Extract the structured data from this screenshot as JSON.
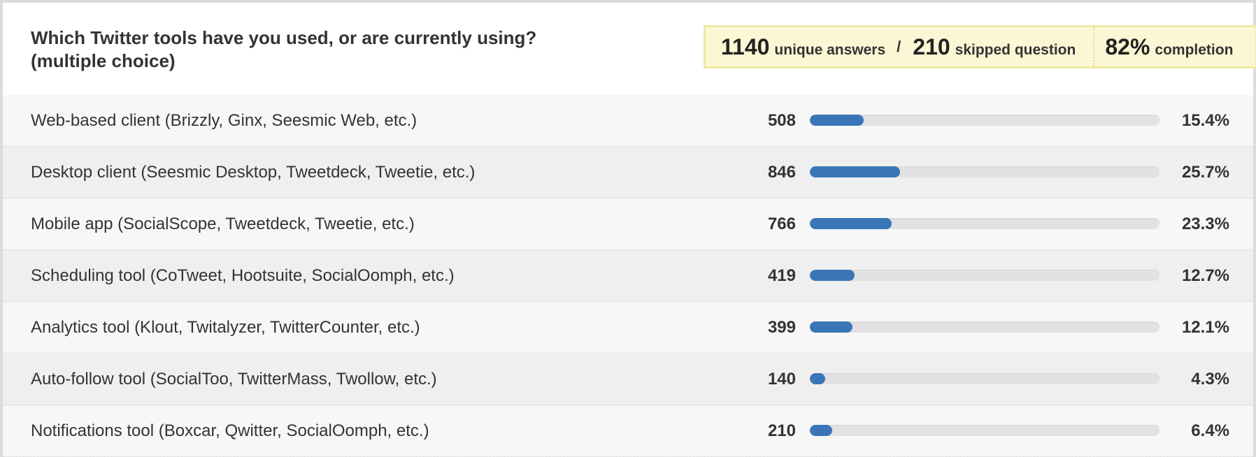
{
  "question": {
    "line1": "Which Twitter tools have you used, or are currently using?",
    "line2": "(multiple choice)"
  },
  "stats": {
    "answers_value": "1140",
    "answers_label": "unique answers",
    "separator": "/",
    "skipped_value": "210",
    "skipped_label": "skipped question",
    "completion_value": "82%",
    "completion_label": "completion"
  },
  "colors": {
    "bar": "#3a76b7",
    "track": "#e2e2e2",
    "stats_background": "#fbf7d4"
  },
  "chart_data": {
    "type": "bar",
    "orientation": "horizontal",
    "categories": [
      "Web-based client (Brizzly, Ginx, Seesmic Web, etc.)",
      "Desktop client (Seesmic Desktop, Tweetdeck, Tweetie, etc.)",
      "Mobile app (SocialScope, Tweetdeck, Tweetie, etc.)",
      "Scheduling tool (CoTweet, Hootsuite, SocialOomph, etc.)",
      "Analytics tool (Klout, Twitalyzer, TwitterCounter, etc.)",
      "Auto-follow tool (SocialToo, TwitterMass, Twollow, etc.)",
      "Notifications tool (Boxcar, Qwitter, SocialOomph, etc.)"
    ],
    "counts": [
      508,
      846,
      766,
      419,
      399,
      140,
      210
    ],
    "count_labels": [
      "508",
      "846",
      "766",
      "419",
      "399",
      "140",
      "210"
    ],
    "percentages": [
      15.4,
      25.7,
      23.3,
      12.7,
      12.1,
      4.3,
      6.4
    ],
    "percentage_labels": [
      "15.4%",
      "25.7%",
      "23.3%",
      "12.7%",
      "12.1%",
      "4.3%",
      "6.4%"
    ],
    "xlim": [
      0,
      100
    ],
    "grid": false,
    "legend": "none"
  }
}
